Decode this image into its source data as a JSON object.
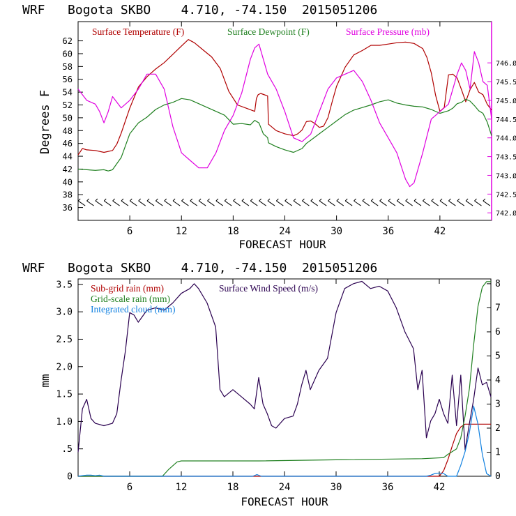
{
  "chart_data": [
    {
      "type": "line",
      "title": "WRF   Bogota SKBO    4.710, -74.150  2015051206",
      "xlabel": "FORECAST HOUR",
      "ylabel": "Degrees F",
      "xlim": [
        0,
        48
      ],
      "xticks": [
        6,
        12,
        18,
        24,
        30,
        36,
        42
      ],
      "ylim": [
        34,
        65
      ],
      "yticks": [
        36,
        38,
        40,
        42,
        44,
        46,
        48,
        50,
        52,
        54,
        56,
        58,
        60,
        62
      ],
      "y2lim": [
        741.8,
        747.1
      ],
      "y2ticks": [
        742.0,
        742.5,
        743.0,
        743.5,
        744.0,
        744.5,
        745.0,
        745.5,
        746.0
      ],
      "series": [
        {
          "name": "Surface Temperature (F)",
          "color": "#b00000",
          "axis": "left",
          "x": [
            0,
            0.5,
            1,
            2,
            3,
            4,
            4.5,
            5,
            6,
            7,
            8,
            9,
            10,
            11,
            12,
            12.8,
            13.5,
            14.5,
            15.5,
            16.5,
            17.5,
            18.5,
            19.5,
            20.5,
            20.7,
            20.9,
            21.2,
            22,
            22.1,
            23,
            24,
            25,
            25.5,
            26,
            26.5,
            27,
            27.5,
            28,
            28.5,
            29,
            29.5,
            30,
            31,
            32,
            33,
            34,
            35,
            36,
            37,
            38,
            39,
            40,
            40.5,
            41,
            41.5,
            42,
            42.5,
            43,
            43.5,
            44,
            44.5,
            45,
            45.5,
            46,
            46.5,
            47,
            47.5,
            48
          ],
          "values": [
            44.2,
            45.2,
            45.0,
            44.9,
            44.6,
            44.9,
            45.9,
            47.6,
            51.5,
            54.8,
            56.4,
            57.6,
            58.6,
            59.9,
            61.2,
            62.2,
            61.7,
            60.6,
            59.5,
            57.7,
            54.1,
            52.0,
            51.5,
            51.0,
            53.0,
            53.6,
            53.8,
            53.4,
            49.0,
            48.0,
            47.5,
            47.2,
            47.5,
            48.1,
            49.4,
            49.5,
            49.1,
            48.5,
            48.7,
            50.0,
            52.5,
            54.9,
            57.9,
            59.8,
            60.5,
            61.3,
            61.3,
            61.5,
            61.7,
            61.8,
            61.6,
            60.8,
            59.4,
            57.0,
            53.5,
            51.0,
            51.6,
            56.7,
            56.8,
            56.2,
            54.4,
            52.5,
            54.4,
            55.5,
            54.0,
            53.6,
            52.1,
            51.2
          ]
        },
        {
          "name": "Surface Dewpoint (F)",
          "color": "#208020",
          "axis": "left",
          "x": [
            0,
            1,
            2,
            3,
            3.5,
            4,
            5,
            6,
            7,
            8,
            9,
            10,
            11,
            12,
            13,
            14,
            15,
            16,
            17,
            18,
            19,
            20,
            20.5,
            21,
            21.5,
            22,
            22.1,
            23,
            24,
            25,
            26,
            26.5,
            27,
            28,
            29,
            30,
            31,
            32,
            33,
            34,
            35,
            36,
            37,
            38,
            39,
            40,
            41,
            42,
            43,
            43.5,
            44,
            44.5,
            45,
            45.5,
            46,
            46.5,
            47,
            47.5,
            48
          ],
          "values": [
            42.0,
            41.9,
            41.8,
            41.9,
            41.7,
            41.9,
            43.8,
            47.5,
            49.2,
            50.1,
            51.3,
            52.0,
            52.4,
            53.0,
            52.8,
            52.2,
            51.6,
            51.0,
            50.4,
            49.0,
            49.1,
            48.9,
            49.6,
            49.2,
            47.5,
            46.9,
            46.1,
            45.5,
            45.0,
            44.6,
            45.2,
            46.0,
            46.5,
            47.5,
            48.5,
            49.5,
            50.5,
            51.2,
            51.6,
            52.0,
            52.5,
            52.8,
            52.3,
            52.0,
            51.8,
            51.7,
            51.3,
            50.7,
            51.1,
            51.5,
            52.2,
            52.4,
            52.9,
            52.6,
            51.9,
            51.1,
            50.7,
            49.3,
            47.2
          ]
        },
        {
          "name": "Surface Pressure (mb)",
          "color": "#e000e0",
          "axis": "right",
          "x": [
            0,
            1,
            2,
            2.5,
            3,
            3.5,
            4,
            5,
            6,
            7,
            8,
            9,
            10,
            11,
            12,
            13,
            14,
            15,
            16,
            17,
            18,
            19,
            20,
            20.5,
            21,
            21.5,
            22,
            23,
            24,
            25,
            26,
            27,
            28,
            29,
            30,
            31,
            32,
            33,
            34,
            35,
            36,
            37,
            38,
            38.5,
            39,
            40,
            41,
            42,
            43,
            43.5,
            44,
            44.5,
            45,
            45.5,
            46,
            46.5,
            47,
            47.5,
            48
          ],
          "values": [
            745.3,
            745.0,
            744.9,
            744.7,
            744.4,
            744.7,
            745.1,
            744.8,
            745.0,
            745.3,
            745.7,
            745.7,
            745.3,
            744.3,
            743.6,
            743.4,
            743.2,
            743.2,
            743.6,
            744.2,
            744.6,
            745.2,
            746.1,
            746.4,
            746.5,
            746.1,
            745.7,
            745.3,
            744.7,
            744.0,
            743.9,
            744.1,
            744.7,
            745.3,
            745.6,
            745.7,
            745.8,
            745.5,
            745.0,
            744.4,
            744.0,
            743.6,
            742.9,
            742.7,
            742.8,
            743.6,
            744.5,
            744.7,
            744.9,
            745.3,
            745.7,
            746.0,
            745.8,
            745.3,
            746.3,
            746.0,
            745.5,
            745.4,
            744.5
          ]
        }
      ],
      "wind_barbs": {
        "x_start": 0.5,
        "x_end": 48,
        "step": 1,
        "y": 36.6,
        "note": "surface wind barbs along bottom of temperature panel"
      }
    },
    {
      "type": "line",
      "title": "WRF   Bogota SKBO    4.710, -74.150  2015051206",
      "xlabel": "FORECAST HOUR",
      "ylabel": "mm",
      "xlim": [
        0,
        48
      ],
      "xticks": [
        6,
        12,
        18,
        24,
        30,
        36,
        42
      ],
      "ylim": [
        0,
        3.6
      ],
      "yticks": [
        0,
        0.5,
        1.0,
        1.5,
        2.0,
        2.5,
        3.0,
        3.5
      ],
      "ytick_labels": [
        "0",
        ".5",
        "1.0",
        "1.5",
        "2.0",
        "2.5",
        "3.0",
        "3.5"
      ],
      "y2lim": [
        0,
        8.2
      ],
      "y2ticks": [
        0,
        1,
        2,
        3,
        4,
        5,
        6,
        7,
        8
      ],
      "series": [
        {
          "name": "Sub-grid rain (mm)",
          "color": "#b00000",
          "axis": "left",
          "x": [
            0,
            42,
            42.5,
            43,
            43.5,
            44,
            44.5,
            45,
            45.5,
            46,
            48
          ],
          "values": [
            0,
            0,
            0.1,
            0.3,
            0.55,
            0.78,
            0.9,
            0.95,
            0.95,
            0.95,
            0.95
          ]
        },
        {
          "name": "Surface Wind Speed (m/s)",
          "color": "#2a0050",
          "axis": "right",
          "x": [
            0,
            0.5,
            1,
            1.5,
            2,
            3,
            4,
            4.5,
            5,
            5.5,
            6,
            6.5,
            7,
            8,
            9,
            10,
            11,
            12,
            13,
            13.5,
            14,
            15,
            16,
            16.5,
            17,
            18,
            19,
            20,
            20.5,
            21,
            21.5,
            22,
            22.5,
            23,
            24,
            25,
            25.5,
            26,
            26.5,
            27,
            28,
            29,
            30,
            31,
            32,
            33,
            34,
            35,
            36,
            37,
            38,
            39,
            39.5,
            40,
            40.5,
            41,
            41.5,
            42,
            42.5,
            43,
            43.5,
            44,
            44.5,
            45,
            45.5,
            46,
            46.5,
            47,
            47.5,
            48
          ],
          "values": [
            1.0,
            2.8,
            3.2,
            2.4,
            2.2,
            2.1,
            2.2,
            2.6,
            4.0,
            5.2,
            6.8,
            6.7,
            6.4,
            6.9,
            7.0,
            6.9,
            7.2,
            7.6,
            7.8,
            8.0,
            7.8,
            7.2,
            6.2,
            3.6,
            3.3,
            3.6,
            3.3,
            3.0,
            2.8,
            4.1,
            3.0,
            2.6,
            2.1,
            2.0,
            2.4,
            2.5,
            3.0,
            3.8,
            4.4,
            3.6,
            4.4,
            4.9,
            6.8,
            7.8,
            8.0,
            8.1,
            7.8,
            7.9,
            7.7,
            7.0,
            6.0,
            5.3,
            3.6,
            4.4,
            1.6,
            2.3,
            2.6,
            3.2,
            2.6,
            2.2,
            4.2,
            2.1,
            4.2,
            1.1,
            2.2,
            3.2,
            4.5,
            3.8,
            3.9,
            3.3
          ]
        },
        {
          "name": "Grid-scale rain (mm)",
          "color": "#208020",
          "axis": "left",
          "x": [
            0,
            9.8,
            10.5,
            11.5,
            12,
            20,
            21,
            30,
            40,
            42.5,
            43,
            44,
            44.5,
            45,
            45.5,
            46,
            46.5,
            47,
            47.5,
            48
          ],
          "values": [
            0,
            0,
            0.12,
            0.26,
            0.28,
            0.28,
            0.28,
            0.3,
            0.32,
            0.34,
            0.4,
            0.5,
            0.7,
            1.1,
            1.6,
            2.4,
            3.1,
            3.45,
            3.55,
            3.55
          ]
        },
        {
          "name": "Integrated cloud (mm)",
          "color": "#1080e0",
          "axis": "left",
          "x": [
            0,
            1,
            1.5,
            2,
            2.5,
            3,
            20.3,
            20.8,
            21.3,
            40.5,
            41,
            41.5,
            42,
            42.5,
            43,
            44,
            44.5,
            45,
            45.5,
            46,
            46.5,
            47,
            47.5,
            48
          ],
          "values": [
            0,
            0.02,
            0.02,
            0.01,
            0.02,
            0,
            0,
            0.03,
            0,
            0,
            0.02,
            0.05,
            0.06,
            0.05,
            0,
            0,
            0.2,
            0.45,
            0.8,
            1.28,
            0.95,
            0.4,
            0.05,
            0
          ]
        }
      ]
    }
  ]
}
